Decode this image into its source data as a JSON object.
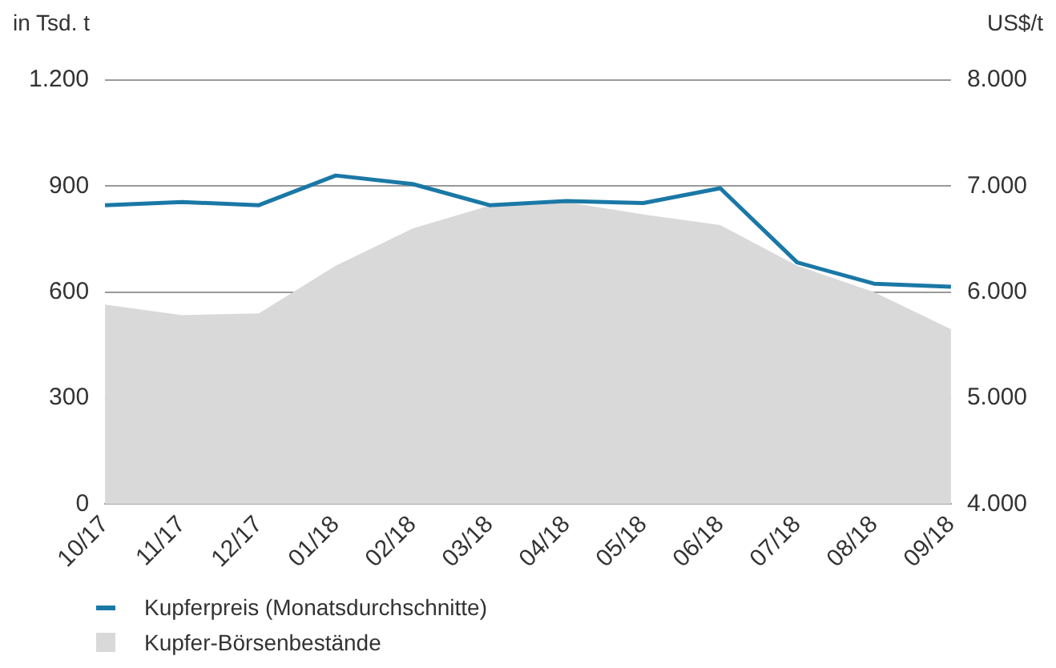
{
  "chart_data": {
    "type": "line",
    "ylabel": "in Tsd. t",
    "y2label": "US$/t",
    "categories": [
      "10/17",
      "11/17",
      "12/17",
      "01/18",
      "02/18",
      "03/18",
      "04/18",
      "05/18",
      "06/18",
      "07/18",
      "08/18",
      "09/18"
    ],
    "series": [
      {
        "name": "Kupferpreis (Monatsdurchschnitte)",
        "axis": "y2",
        "color": "#1a78a6",
        "values": [
          6820,
          6850,
          6820,
          7100,
          7020,
          6820,
          6860,
          6840,
          6980,
          6280,
          6080,
          6050
        ]
      },
      {
        "name": "Kupfer-Börsenbestände",
        "type": "area",
        "color": "#d9d9d9",
        "values": [
          565,
          535,
          540,
          675,
          780,
          845,
          855,
          820,
          790,
          675,
          600,
          495
        ]
      }
    ],
    "ylim": [
      0,
      1200
    ],
    "yticks": [
      0,
      300,
      600,
      900,
      {
        "value": 1200,
        "label": "1.200"
      }
    ],
    "y2lim": [
      4000,
      8000
    ],
    "y2ticks": [
      {
        "value": 4000,
        "label": "4.000"
      },
      {
        "value": 5000,
        "label": "5.000"
      },
      {
        "value": 6000,
        "label": "6.000"
      },
      {
        "value": 7000,
        "label": "7.000"
      },
      {
        "value": 8000,
        "label": "8.000"
      }
    ],
    "grid": "y",
    "legend": "bottom left",
    "marker": "none",
    "line_style": "solid"
  }
}
